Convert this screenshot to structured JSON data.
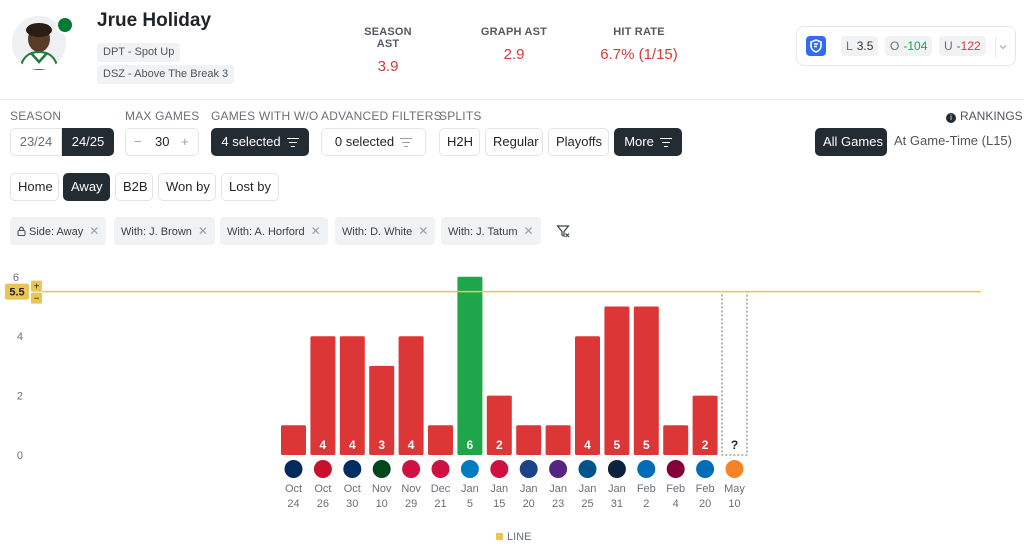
{
  "player": {
    "name": "Jrue Holiday",
    "tags": [
      "DPT - Spot Up",
      "DSZ - Above The Break 3"
    ]
  },
  "stats": [
    {
      "label": "SEASON AST",
      "value": "3.9"
    },
    {
      "label": "GRAPH AST",
      "value": "2.9"
    },
    {
      "label": "HIT RATE",
      "value": "6.7% (1/15)"
    }
  ],
  "book": {
    "icon": "sportsbook-shield-icon",
    "line": {
      "key": "L",
      "value": "3.5"
    },
    "over": {
      "key": "O",
      "value": "-104"
    },
    "under": {
      "key": "U",
      "value": "-122"
    }
  },
  "filters": {
    "season": {
      "label": "SEASON",
      "options": [
        "23/24",
        "24/25"
      ],
      "selected": "24/25"
    },
    "max_games": {
      "label": "MAX GAMES",
      "minus": "−",
      "value": "30",
      "plus": "+"
    },
    "games_with": {
      "label": "GAMES WITH W/O",
      "value": "4 selected"
    },
    "advanced": {
      "label": "ADVANCED FILTERS",
      "value": "0 selected"
    },
    "splits": {
      "label": "SPLITS",
      "options": [
        "H2H",
        "Regular",
        "Playoffs",
        "More"
      ],
      "selected": "More"
    },
    "rankings": {
      "label": "RANKINGS",
      "info": "i"
    },
    "game_range": {
      "options": [
        "All Games",
        "At Game-Time (L15)"
      ],
      "selected": "All Games"
    },
    "location": {
      "options": [
        "Home",
        "Away",
        "B2B",
        "Won by",
        "Lost by"
      ],
      "selected": "Away"
    }
  },
  "chips": [
    {
      "icon": "lock-icon",
      "label": "Side: Away"
    },
    {
      "label": "With: J. Brown"
    },
    {
      "label": "With: A. Horford"
    },
    {
      "label": "With: D. White"
    },
    {
      "label": "With: J. Tatum"
    }
  ],
  "clear_filters_icon": "filter-clear-icon",
  "colors": {
    "hit": "#1fa64a",
    "miss": "#dd3636",
    "line": "#eac54f",
    "dark": "#232b33"
  },
  "chart_data": {
    "type": "bar",
    "line_value": 5.5,
    "line_label": "5.5",
    "line_plus": "+",
    "line_minus": "−",
    "y_ticks": [
      0,
      2,
      4,
      6
    ],
    "ylim": [
      0,
      6
    ],
    "legend": "LINE",
    "games": [
      {
        "month": "Oct",
        "day": "24",
        "opp": "WAS",
        "value": 1,
        "label": ""
      },
      {
        "month": "Oct",
        "day": "26",
        "opp": "DET",
        "value": 4,
        "label": "4"
      },
      {
        "month": "Oct",
        "day": "30",
        "opp": "IND",
        "value": 4,
        "label": "4"
      },
      {
        "month": "Nov",
        "day": "10",
        "opp": "MIL",
        "value": 3,
        "label": "3"
      },
      {
        "month": "Nov",
        "day": "29",
        "opp": "CHI",
        "value": 4,
        "label": "4"
      },
      {
        "month": "Dec",
        "day": "21",
        "opp": "CHI",
        "value": 1,
        "label": ""
      },
      {
        "month": "Jan",
        "day": "5",
        "opp": "OKC",
        "value": 6,
        "label": "6"
      },
      {
        "month": "Jan",
        "day": "15",
        "opp": "TOR",
        "value": 2,
        "label": "2"
      },
      {
        "month": "Jan",
        "day": "20",
        "opp": "GSW",
        "value": 1,
        "label": ""
      },
      {
        "month": "Jan",
        "day": "23",
        "opp": "LAL",
        "value": 1,
        "label": ""
      },
      {
        "month": "Jan",
        "day": "25",
        "opp": "DAL",
        "value": 4,
        "label": "4"
      },
      {
        "month": "Jan",
        "day": "31",
        "opp": "NOP",
        "value": 5,
        "label": "5"
      },
      {
        "month": "Feb",
        "day": "2",
        "opp": "PHI",
        "value": 5,
        "label": "5"
      },
      {
        "month": "Feb",
        "day": "4",
        "opp": "CLE",
        "value": 1,
        "label": ""
      },
      {
        "month": "Feb",
        "day": "20",
        "opp": "PHI",
        "value": 2,
        "label": "2"
      },
      {
        "month": "May",
        "day": "10",
        "opp": "NYK",
        "value": null,
        "label": "?"
      }
    ]
  }
}
